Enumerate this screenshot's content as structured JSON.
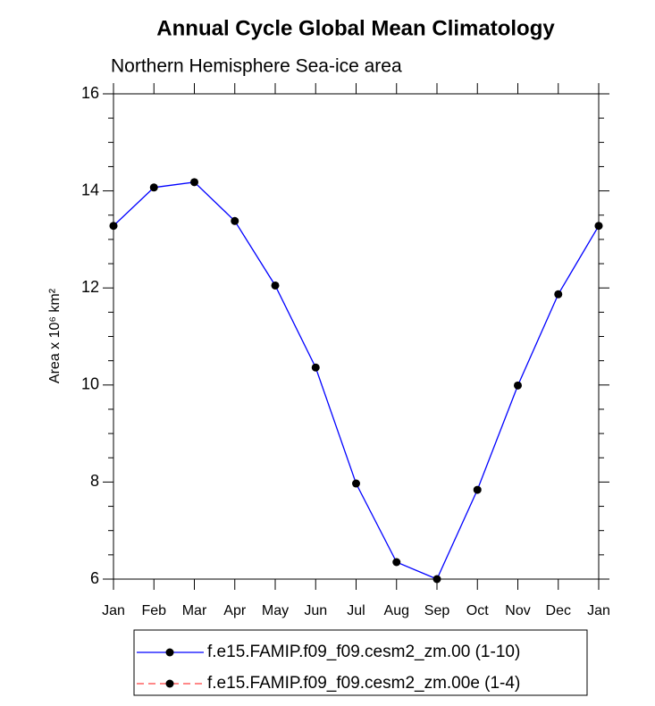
{
  "chart_data": {
    "type": "line",
    "title": "Annual Cycle Global Mean Climatology",
    "subtitle": "Northern Hemisphere Sea-ice area",
    "ylabel": "Area x 10⁶ km²",
    "categories": [
      "Jan",
      "Feb",
      "Mar",
      "Apr",
      "May",
      "Jun",
      "Jul",
      "Aug",
      "Sep",
      "Oct",
      "Nov",
      "Dec",
      "Jan"
    ],
    "series": [
      {
        "name": "f.e15.FAMIP.f09_f09.cesm2_zm.00 (1-10)",
        "color": "#0000ff",
        "linestyle": "solid",
        "values": [
          13.28,
          14.07,
          14.18,
          13.38,
          12.05,
          10.36,
          7.97,
          6.35,
          6.0,
          7.84,
          9.99,
          11.87,
          13.28
        ]
      },
      {
        "name": "f.e15.FAMIP.f09_f09.cesm2_zm.00e (1-4)",
        "color": "#ff4040",
        "linestyle": "dashed",
        "values": [
          null,
          null,
          null,
          null,
          null,
          null,
          null,
          null,
          null,
          null,
          null,
          null,
          null
        ]
      }
    ],
    "marker_color": "#000000",
    "ylim": [
      6,
      16
    ],
    "yticks": [
      6,
      8,
      10,
      12,
      14,
      16
    ]
  }
}
